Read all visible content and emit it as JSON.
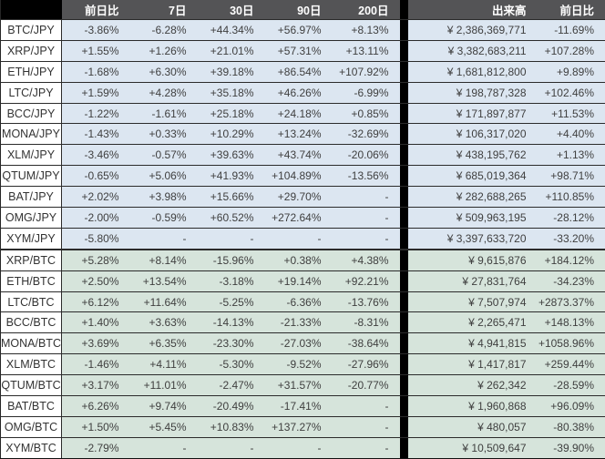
{
  "chart_data": {
    "type": "table",
    "title": "Cryptocurrency pair performance and volume table",
    "header": {
      "corner": "",
      "change_columns": [
        "前日比",
        "7日",
        "30日",
        "90日",
        "200日"
      ],
      "volume_column": "出来高",
      "volume_change_column": "前日比"
    },
    "sections": [
      {
        "id": "jpy",
        "quote_currency": "JPY",
        "row_bg": "#dce6f1"
      },
      {
        "id": "btc",
        "quote_currency": "BTC",
        "row_bg": "#d6e4db"
      }
    ],
    "rows": [
      {
        "pair": "BTC/JPY",
        "section": "jpy",
        "changes": [
          "-3.86%",
          "-6.28%",
          "+44.34%",
          "+56.97%",
          "+8.13%"
        ],
        "volume": "¥ 2,386,369,771",
        "volume_change": "-11.69%"
      },
      {
        "pair": "XRP/JPY",
        "section": "jpy",
        "changes": [
          "+1.55%",
          "+1.26%",
          "+21.01%",
          "+57.31%",
          "+13.11%"
        ],
        "volume": "¥ 3,382,683,211",
        "volume_change": "+107.28%"
      },
      {
        "pair": "ETH/JPY",
        "section": "jpy",
        "changes": [
          "-1.68%",
          "+6.30%",
          "+39.18%",
          "+86.54%",
          "+107.92%"
        ],
        "volume": "¥ 1,681,812,800",
        "volume_change": "+9.89%"
      },
      {
        "pair": "LTC/JPY",
        "section": "jpy",
        "changes": [
          "+1.59%",
          "+4.28%",
          "+35.18%",
          "+46.26%",
          "-6.99%"
        ],
        "volume": "¥ 198,787,328",
        "volume_change": "+102.46%"
      },
      {
        "pair": "BCC/JPY",
        "section": "jpy",
        "changes": [
          "-1.22%",
          "-1.61%",
          "+25.18%",
          "+24.18%",
          "+0.85%"
        ],
        "volume": "¥ 171,897,877",
        "volume_change": "+11.53%"
      },
      {
        "pair": "MONA/JPY",
        "section": "jpy",
        "changes": [
          "-1.43%",
          "+0.33%",
          "+10.29%",
          "+13.24%",
          "-32.69%"
        ],
        "volume": "¥ 106,317,020",
        "volume_change": "+4.40%"
      },
      {
        "pair": "XLM/JPY",
        "section": "jpy",
        "changes": [
          "-3.46%",
          "-0.57%",
          "+39.63%",
          "+43.74%",
          "-20.06%"
        ],
        "volume": "¥ 438,195,762",
        "volume_change": "+1.13%"
      },
      {
        "pair": "QTUM/JPY",
        "section": "jpy",
        "changes": [
          "-0.65%",
          "+5.06%",
          "+41.93%",
          "+104.89%",
          "-13.56%"
        ],
        "volume": "¥ 685,019,364",
        "volume_change": "+98.71%"
      },
      {
        "pair": "BAT/JPY",
        "section": "jpy",
        "changes": [
          "+2.02%",
          "+3.98%",
          "+15.66%",
          "+29.70%",
          "-"
        ],
        "volume": "¥ 282,688,265",
        "volume_change": "+110.85%"
      },
      {
        "pair": "OMG/JPY",
        "section": "jpy",
        "changes": [
          "-2.00%",
          "-0.59%",
          "+60.52%",
          "+272.64%",
          "-"
        ],
        "volume": "¥ 509,963,195",
        "volume_change": "-28.12%"
      },
      {
        "pair": "XYM/JPY",
        "section": "jpy",
        "changes": [
          "-5.80%",
          "-",
          "-",
          "-",
          "-"
        ],
        "volume": "¥ 3,397,633,720",
        "volume_change": "-33.20%"
      },
      {
        "pair": "XRP/BTC",
        "section": "btc",
        "changes": [
          "+5.28%",
          "+8.14%",
          "-15.96%",
          "+0.38%",
          "+4.38%"
        ],
        "volume": "¥ 9,615,876",
        "volume_change": "+184.12%"
      },
      {
        "pair": "ETH/BTC",
        "section": "btc",
        "changes": [
          "+2.50%",
          "+13.54%",
          "-3.18%",
          "+19.14%",
          "+92.21%"
        ],
        "volume": "¥ 27,831,764",
        "volume_change": "-34.23%"
      },
      {
        "pair": "LTC/BTC",
        "section": "btc",
        "changes": [
          "+6.12%",
          "+11.64%",
          "-5.25%",
          "-6.36%",
          "-13.76%"
        ],
        "volume": "¥ 7,507,974",
        "volume_change": "+2873.37%"
      },
      {
        "pair": "BCC/BTC",
        "section": "btc",
        "changes": [
          "+1.40%",
          "+3.63%",
          "-14.13%",
          "-21.33%",
          "-8.31%"
        ],
        "volume": "¥ 2,265,471",
        "volume_change": "+148.13%"
      },
      {
        "pair": "MONA/BTC",
        "section": "btc",
        "changes": [
          "+3.69%",
          "+6.35%",
          "-23.30%",
          "-27.03%",
          "-38.64%"
        ],
        "volume": "¥ 4,941,815",
        "volume_change": "+1058.96%"
      },
      {
        "pair": "XLM/BTC",
        "section": "btc",
        "changes": [
          "-1.46%",
          "+4.11%",
          "-5.30%",
          "-9.52%",
          "-27.96%"
        ],
        "volume": "¥ 1,417,817",
        "volume_change": "+259.44%"
      },
      {
        "pair": "QTUM/BTC",
        "section": "btc",
        "changes": [
          "+3.17%",
          "+11.01%",
          "-2.47%",
          "+31.57%",
          "-20.77%"
        ],
        "volume": "¥ 262,342",
        "volume_change": "-28.59%"
      },
      {
        "pair": "BAT/BTC",
        "section": "btc",
        "changes": [
          "+6.26%",
          "+9.74%",
          "-20.49%",
          "-17.41%",
          "-"
        ],
        "volume": "¥ 1,960,868",
        "volume_change": "+96.09%"
      },
      {
        "pair": "OMG/BTC",
        "section": "btc",
        "changes": [
          "+1.50%",
          "+5.45%",
          "+10.83%",
          "+137.27%",
          "-"
        ],
        "volume": "¥ 480,057",
        "volume_change": "-80.38%"
      },
      {
        "pair": "XYM/BTC",
        "section": "btc",
        "changes": [
          "-2.79%",
          "-",
          "-",
          "-",
          "-"
        ],
        "volume": "¥ 10,509,647",
        "volume_change": "-39.90%"
      }
    ]
  },
  "colors": {
    "header_bg": "#545456",
    "header_text": "#ffffff",
    "corner_bg": "#000000",
    "separator_bg": "#000000",
    "jpy_row_bg": "#dce6f1",
    "btc_row_bg": "#d6e4db",
    "pair_cell_bg": "#ffffff",
    "value_text": "#3f3f3f",
    "grid_line": "#2b2b2b"
  }
}
